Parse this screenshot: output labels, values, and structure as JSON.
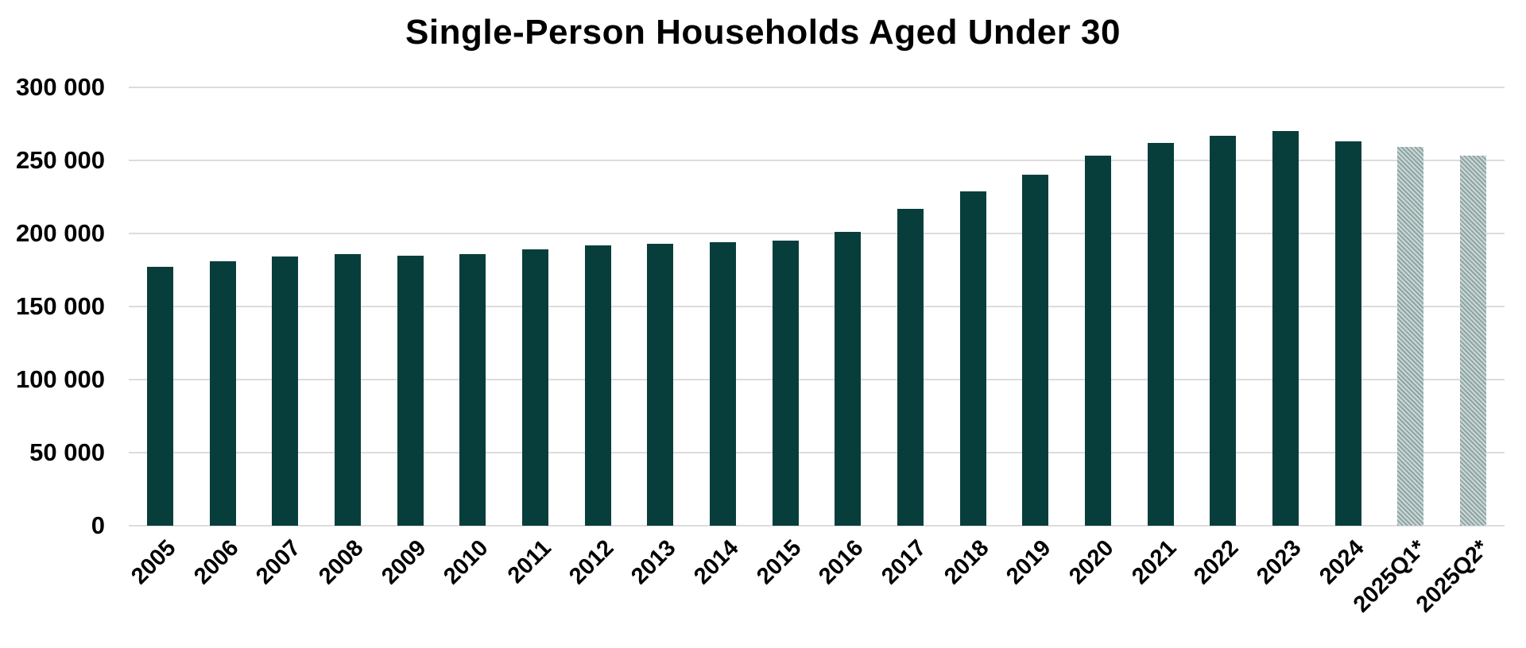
{
  "chart_data": {
    "type": "bar",
    "title": "Single-Person Households Aged Under 30",
    "categories": [
      "2005",
      "2006",
      "2007",
      "2008",
      "2009",
      "2010",
      "2011",
      "2012",
      "2013",
      "2014",
      "2015",
      "2016",
      "2017",
      "2018",
      "2019",
      "2020",
      "2021",
      "2022",
      "2023",
      "2024",
      "2025Q1*",
      "2025Q2*"
    ],
    "values": [
      177000,
      181000,
      184000,
      186000,
      185000,
      186000,
      189000,
      192000,
      193000,
      194000,
      195000,
      201000,
      217000,
      229000,
      240000,
      253000,
      262000,
      267000,
      270000,
      263000,
      259000,
      253000
    ],
    "provisional": [
      false,
      false,
      false,
      false,
      false,
      false,
      false,
      false,
      false,
      false,
      false,
      false,
      false,
      false,
      false,
      false,
      false,
      false,
      false,
      false,
      true,
      true
    ],
    "xlabel": "",
    "ylabel": "",
    "ylim": [
      0,
      300000
    ],
    "ytick_step": 50000,
    "ytick_labels": [
      "0",
      "50 000",
      "100 000",
      "150 000",
      "200 000",
      "250 000",
      "300 000"
    ],
    "grid": "horizontal",
    "legend_position": "none",
    "colors": {
      "bar": "#073e3c",
      "provisional_stripe_dark": "#8ca6a4",
      "provisional_stripe_light": "#cdd7d6",
      "gridline": "#dcdcdc",
      "text": "#000000",
      "background": "#ffffff"
    }
  }
}
